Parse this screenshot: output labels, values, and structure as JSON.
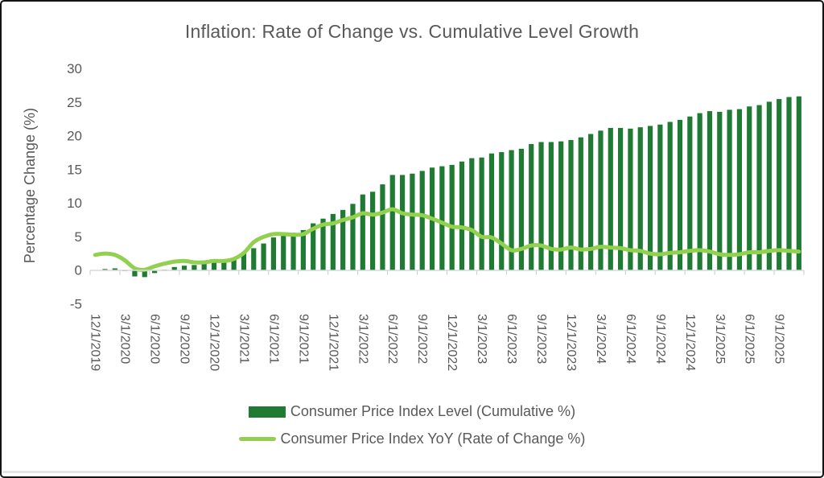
{
  "chart_data": {
    "type": "combo",
    "title": "Inflation: Rate of Change vs. Cumulative Level Growth",
    "ylabel": "Percentage Change (%)",
    "ylim": [
      -5,
      30
    ],
    "y_ticks": [
      30,
      25,
      20,
      15,
      10,
      5,
      0,
      -5
    ],
    "grid": false,
    "legend_position": "bottom",
    "x_label_interval": 3,
    "categories": [
      "12/1/2019",
      "1/1/2020",
      "2/1/2020",
      "3/1/2020",
      "4/1/2020",
      "5/1/2020",
      "6/1/2020",
      "7/1/2020",
      "8/1/2020",
      "9/1/2020",
      "10/1/2020",
      "11/1/2020",
      "12/1/2020",
      "1/1/2021",
      "2/1/2021",
      "3/1/2021",
      "4/1/2021",
      "5/1/2021",
      "6/1/2021",
      "7/1/2021",
      "8/1/2021",
      "9/1/2021",
      "10/1/2021",
      "11/1/2021",
      "12/1/2021",
      "1/1/2022",
      "2/1/2022",
      "3/1/2022",
      "4/1/2022",
      "5/1/2022",
      "6/1/2022",
      "7/1/2022",
      "8/1/2022",
      "9/1/2022",
      "10/1/2022",
      "11/1/2022",
      "12/1/2022",
      "1/1/2023",
      "2/1/2023",
      "3/1/2023",
      "4/1/2023",
      "5/1/2023",
      "6/1/2023",
      "7/1/2023",
      "8/1/2023",
      "9/1/2023",
      "10/1/2023",
      "11/1/2023",
      "12/1/2023",
      "1/1/2024",
      "2/1/2024",
      "3/1/2024",
      "4/1/2024",
      "5/1/2024",
      "6/1/2024",
      "7/1/2024",
      "8/1/2024",
      "9/1/2024",
      "10/1/2024",
      "11/1/2024",
      "12/1/2024",
      "1/1/2025",
      "2/1/2025",
      "3/1/2025",
      "4/1/2025",
      "5/1/2025",
      "6/1/2025",
      "7/1/2025",
      "8/1/2025",
      "9/1/2025",
      "10/1/2025",
      "11/1/2025"
    ],
    "x_tick_labels": [
      "12/1/2019",
      "3/1/2020",
      "6/1/2020",
      "9/1/2020",
      "12/1/2020",
      "3/1/2021",
      "6/1/2021",
      "9/1/2021",
      "12/1/2021",
      "3/1/2022",
      "6/1/2022",
      "9/1/2022",
      "12/1/2022",
      "3/1/2023",
      "6/1/2023",
      "9/1/2023",
      "12/1/2023",
      "3/1/2024",
      "6/1/2024",
      "9/1/2024",
      "12/1/2024",
      "3/1/2025",
      "6/1/2025",
      "9/1/2025"
    ],
    "series": [
      {
        "name": "Consumer Price Index Level (Cumulative %)",
        "type": "bar",
        "color": "#1f7a34",
        "values": [
          0.0,
          0.2,
          0.3,
          -0.1,
          -0.9,
          -1.0,
          -0.4,
          0.1,
          0.5,
          0.7,
          0.8,
          1.0,
          1.2,
          1.5,
          1.9,
          2.5,
          3.3,
          4.0,
          4.9,
          5.3,
          5.6,
          6.0,
          7.0,
          7.7,
          8.4,
          9.0,
          9.9,
          11.3,
          11.7,
          12.8,
          14.2,
          14.2,
          14.4,
          14.8,
          15.3,
          15.5,
          15.7,
          16.2,
          16.7,
          16.8,
          17.4,
          17.6,
          17.9,
          18.1,
          18.8,
          19.1,
          19.1,
          19.2,
          19.4,
          19.8,
          20.3,
          20.8,
          21.2,
          21.2,
          21.1,
          21.3,
          21.5,
          21.7,
          22.1,
          22.4,
          22.9,
          23.4,
          23.7,
          23.6,
          23.9,
          24.0,
          24.4,
          24.6,
          25.1,
          25.5,
          25.8,
          25.9
        ]
      },
      {
        "name": "Consumer Price Index YoY (Rate of Change %)",
        "type": "line",
        "color": "#92d050",
        "values": [
          2.3,
          2.5,
          2.3,
          1.5,
          0.3,
          0.1,
          0.6,
          1.0,
          1.3,
          1.4,
          1.2,
          1.2,
          1.4,
          1.4,
          1.7,
          2.6,
          4.2,
          5.0,
          5.4,
          5.4,
          5.3,
          5.4,
          6.2,
          6.8,
          7.0,
          7.5,
          7.9,
          8.5,
          8.3,
          8.6,
          9.1,
          8.5,
          8.3,
          8.2,
          7.7,
          7.1,
          6.5,
          6.4,
          6.0,
          5.0,
          4.9,
          4.0,
          3.0,
          3.2,
          3.7,
          3.7,
          3.2,
          3.1,
          3.4,
          3.1,
          3.2,
          3.5,
          3.4,
          3.3,
          3.0,
          2.9,
          2.5,
          2.4,
          2.6,
          2.7,
          2.9,
          3.0,
          2.8,
          2.4,
          2.3,
          2.4,
          2.7,
          2.7,
          2.9,
          3.0,
          2.9,
          2.8
        ]
      }
    ],
    "colors": {
      "text": "#595959",
      "axis_line": "#d9d9d9",
      "tick_mark": "#c9c9c9"
    }
  }
}
